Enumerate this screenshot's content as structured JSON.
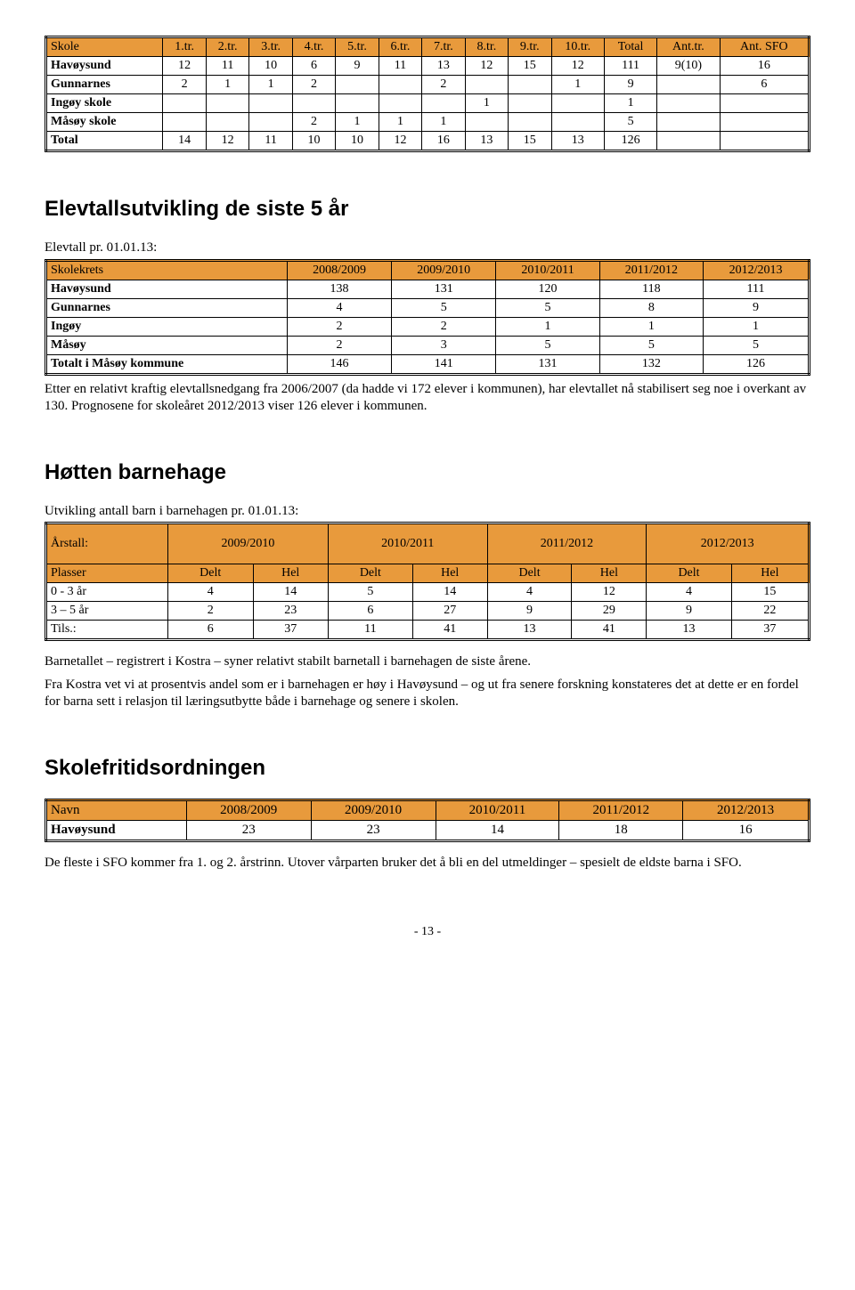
{
  "table1": {
    "headers": [
      "Skole",
      "1.tr.",
      "2.tr.",
      "3.tr.",
      "4.tr.",
      "5.tr.",
      "6.tr.",
      "7.tr.",
      "8.tr.",
      "9.tr.",
      "10.tr.",
      "Total",
      "Ant.tr.",
      "Ant. SFO"
    ],
    "rows": [
      [
        "Havøysund",
        "12",
        "11",
        "10",
        "6",
        "9",
        "11",
        "13",
        "12",
        "15",
        "12",
        "111",
        "9(10)",
        "16"
      ],
      [
        "Gunnarnes",
        "2",
        "1",
        "1",
        "2",
        "",
        "",
        "2",
        "",
        "",
        "1",
        "9",
        "",
        "6"
      ],
      [
        "Ingøy skole",
        "",
        "",
        "",
        "",
        "",
        "",
        "",
        "1",
        "",
        "",
        "1",
        "",
        ""
      ],
      [
        "Måsøy skole",
        "",
        "",
        "",
        "2",
        "1",
        "1",
        "1",
        "",
        "",
        "",
        "5",
        "",
        ""
      ],
      [
        "Total",
        "14",
        "12",
        "11",
        "10",
        "10",
        "12",
        "16",
        "13",
        "15",
        "13",
        "126",
        "",
        ""
      ]
    ]
  },
  "heading1": "Elevtallsutvikling de siste 5 år",
  "elevtall_label": "Elevtall pr. 01.01.13:",
  "table2": {
    "headers": [
      "Skolekrets",
      "2008/2009",
      "2009/2010",
      "2010/2011",
      "2011/2012",
      "2012/2013"
    ],
    "rows": [
      [
        "Havøysund",
        "138",
        "131",
        "120",
        "118",
        "111"
      ],
      [
        "Gunnarnes",
        "4",
        "5",
        "5",
        "8",
        "9"
      ],
      [
        "Ingøy",
        "2",
        "2",
        "1",
        "1",
        "1"
      ],
      [
        "Måsøy",
        "2",
        "3",
        "5",
        "5",
        "5"
      ],
      [
        "Totalt i Måsøy kommune",
        "146",
        "141",
        "131",
        "132",
        "126"
      ]
    ]
  },
  "para1": "Etter en relativt kraftig elevtallsnedgang fra 2006/2007 (da hadde vi 172 elever i kommunen), har elevtallet nå stabilisert seg noe i overkant av 130. Prognosene for skoleåret 2012/2013 viser 126 elever i kommunen.",
  "heading2": "Høtten barnehage",
  "utvikling_label": "Utvikling antall barn i barnehagen pr. 01.01.13:",
  "table3": {
    "years": [
      "2009/2010",
      "2010/2011",
      "2011/2012",
      "2012/2013"
    ],
    "arstall": "Årstall:",
    "plasser": "Plasser",
    "sub": [
      "Delt",
      "Hel"
    ],
    "rows": [
      [
        "0 - 3 år",
        "4",
        "14",
        "5",
        "14",
        "4",
        "12",
        "4",
        "15"
      ],
      [
        "3 – 5 år",
        "2",
        "23",
        "6",
        "27",
        "9",
        "29",
        "9",
        "22"
      ],
      [
        "Tils.:",
        "6",
        "37",
        "11",
        "41",
        "13",
        "41",
        "13",
        "37"
      ]
    ]
  },
  "para2a": "Barnetallet – registrert i Kostra – syner relativt stabilt barnetall i barnehagen de siste årene.",
  "para2b": "Fra Kostra vet vi at prosentvis andel som er i barnehagen er høy i Havøysund – og ut fra senere forskning konstateres det at dette er en fordel for barna sett i relasjon til læringsutbytte både i barnehage og senere i skolen.",
  "heading3": "Skolefritidsordningen",
  "table4": {
    "headers": [
      "Navn",
      "2008/2009",
      "2009/2010",
      "2010/2011",
      "2011/2012",
      "2012/2013"
    ],
    "rows": [
      [
        "Havøysund",
        "23",
        "23",
        "14",
        "18",
        "16"
      ]
    ]
  },
  "para3": "De fleste i SFO kommer fra 1. og 2. årstrinn. Utover vårparten bruker det å bli en del utmeldinger – spesielt de eldste barna i SFO.",
  "pagenum": "- 13 -"
}
